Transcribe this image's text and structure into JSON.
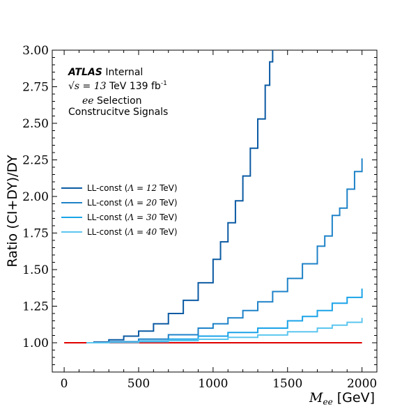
{
  "chart_data": {
    "type": "line",
    "title": "",
    "xlabel_math": "M",
    "xlabel_sub": "ee",
    "xlabel_unit": " [GeV]",
    "ylabel": "Ratio (CI+DY)/DY",
    "xlim": [
      -80,
      2100
    ],
    "ylim": [
      0.8,
      3.0
    ],
    "xticks": [
      0,
      500,
      1000,
      1500,
      2000
    ],
    "yticks": [
      1.0,
      1.25,
      1.5,
      1.75,
      2.0,
      2.25,
      2.5,
      2.75,
      3.0
    ],
    "xtick_labels": [
      "0",
      "500",
      "1000",
      "1500",
      "2000"
    ],
    "ytick_labels": [
      "1.00",
      "1.25",
      "1.50",
      "1.75",
      "2.00",
      "2.25",
      "2.50",
      "2.75",
      "3.00"
    ],
    "legend_placement": "center-left",
    "annotations": {
      "atlas": "ATLAS",
      "internal": " Internal",
      "energy_sqrt": "√s = 13",
      "energy_unit": " TeV 139 fb",
      "lumi_sup": "-1",
      "selection_math": "ee",
      "selection_text": " Selection",
      "signal_text": "Construcitve Signals"
    },
    "series": [
      {
        "name": "LL-const (Λ = 12 TeV)",
        "legend_prefix": "LL-const (",
        "legend_math": "Λ = 12",
        "legend_suffix": " TeV)",
        "color": "#0b5aa3",
        "x": [
          150,
          200,
          300,
          400,
          500,
          600,
          700,
          800,
          900,
          1000,
          1050,
          1100,
          1150,
          1200,
          1250,
          1300,
          1350,
          1380,
          1400
        ],
        "y": [
          1.0,
          1.005,
          1.02,
          1.045,
          1.08,
          1.13,
          1.2,
          1.29,
          1.41,
          1.57,
          1.69,
          1.82,
          1.97,
          2.14,
          2.33,
          2.53,
          2.76,
          2.92,
          3.0
        ]
      },
      {
        "name": "LL-const (Λ = 20 TeV)",
        "legend_prefix": "LL-const (",
        "legend_math": "Λ = 20",
        "legend_suffix": " TeV)",
        "color": "#1e82c8",
        "x": [
          150,
          300,
          500,
          700,
          900,
          1000,
          1100,
          1200,
          1300,
          1400,
          1500,
          1600,
          1700,
          1750,
          1800,
          1850,
          1900,
          1950,
          2000
        ],
        "y": [
          1.0,
          1.007,
          1.025,
          1.055,
          1.1,
          1.13,
          1.17,
          1.22,
          1.28,
          1.35,
          1.44,
          1.54,
          1.66,
          1.73,
          1.87,
          1.92,
          2.05,
          2.17,
          2.26
        ]
      },
      {
        "name": "LL-const (Λ = 30 TeV)",
        "legend_prefix": "LL-const (",
        "legend_math": "Λ = 30",
        "legend_suffix": " TeV)",
        "color": "#1aa3e8",
        "x": [
          150,
          300,
          500,
          700,
          900,
          1100,
          1300,
          1500,
          1600,
          1700,
          1800,
          1900,
          2000
        ],
        "y": [
          1.0,
          1.003,
          1.012,
          1.025,
          1.045,
          1.07,
          1.1,
          1.15,
          1.18,
          1.22,
          1.27,
          1.31,
          1.37
        ]
      },
      {
        "name": "LL-const (Λ = 40 TeV)",
        "legend_prefix": "LL-const (",
        "legend_math": "Λ = 40",
        "legend_suffix": " TeV)",
        "color": "#5cc6ef",
        "x": [
          150,
          300,
          500,
          700,
          900,
          1100,
          1300,
          1500,
          1700,
          1800,
          1900,
          2000
        ],
        "y": [
          1.0,
          1.002,
          1.007,
          1.014,
          1.024,
          1.037,
          1.053,
          1.075,
          1.1,
          1.12,
          1.14,
          1.17
        ]
      }
    ],
    "reference_line": {
      "color": "#e00000",
      "x": [
        0,
        2000
      ],
      "y": [
        1.0,
        1.0
      ]
    }
  }
}
